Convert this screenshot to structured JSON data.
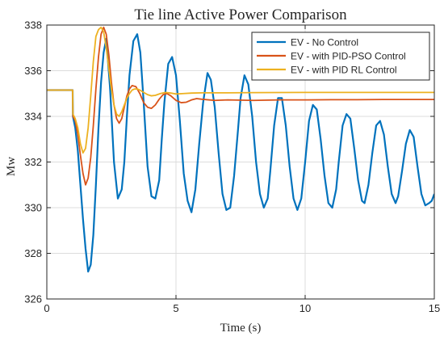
{
  "chart_data": {
    "type": "line",
    "title": "Tie line Active Power Comparison",
    "xlabel": "Time (s)",
    "ylabel": "Mw",
    "xlim": [
      0,
      15
    ],
    "ylim": [
      326,
      338
    ],
    "xticks": [
      0,
      5,
      10,
      15
    ],
    "yticks": [
      326,
      328,
      330,
      332,
      334,
      336,
      338
    ],
    "grid": true,
    "legend_position": "top-right",
    "series": [
      {
        "name": "EV - No Control",
        "color": "#0072BD",
        "x": [
          0,
          1.0,
          1.01,
          1.1,
          1.2,
          1.3,
          1.4,
          1.5,
          1.6,
          1.7,
          1.8,
          1.9,
          2.0,
          2.1,
          2.2,
          2.3,
          2.45,
          2.6,
          2.75,
          2.9,
          3.0,
          3.1,
          3.2,
          3.35,
          3.5,
          3.62,
          3.75,
          3.9,
          4.05,
          4.2,
          4.35,
          4.45,
          4.55,
          4.7,
          4.85,
          5.0,
          5.15,
          5.3,
          5.45,
          5.6,
          5.75,
          5.9,
          6.05,
          6.22,
          6.35,
          6.5,
          6.65,
          6.8,
          6.95,
          7.1,
          7.25,
          7.4,
          7.5,
          7.65,
          7.8,
          7.95,
          8.1,
          8.25,
          8.4,
          8.55,
          8.65,
          8.8,
          8.95,
          9.1,
          9.25,
          9.4,
          9.55,
          9.7,
          9.85,
          10.0,
          10.15,
          10.3,
          10.45,
          10.6,
          10.75,
          10.9,
          11.05,
          11.2,
          11.3,
          11.45,
          11.6,
          11.75,
          11.9,
          12.05,
          12.2,
          12.3,
          12.45,
          12.6,
          12.75,
          12.9,
          13.05,
          13.2,
          13.35,
          13.5,
          13.6,
          13.75,
          13.9,
          14.05,
          14.2,
          14.35,
          14.5,
          14.65,
          14.8,
          14.9,
          15.0
        ],
        "y": [
          335.15,
          335.15,
          334.0,
          333.5,
          332.5,
          331.0,
          329.5,
          328.2,
          327.2,
          327.5,
          328.8,
          331.0,
          333.5,
          335.5,
          336.8,
          337.4,
          335.2,
          332.0,
          330.4,
          330.8,
          332.0,
          334.0,
          335.8,
          337.3,
          337.6,
          336.8,
          334.6,
          331.8,
          330.5,
          330.4,
          331.2,
          333.0,
          334.6,
          336.3,
          336.6,
          335.8,
          333.8,
          331.5,
          330.3,
          329.8,
          330.8,
          332.8,
          334.6,
          335.9,
          335.6,
          334.4,
          332.4,
          330.6,
          329.9,
          330.0,
          331.4,
          333.4,
          334.8,
          335.8,
          335.4,
          334.0,
          332.0,
          330.6,
          330.0,
          330.4,
          331.6,
          333.6,
          334.8,
          334.8,
          333.6,
          331.8,
          330.4,
          329.9,
          330.4,
          332.0,
          333.8,
          334.5,
          334.3,
          333.0,
          331.4,
          330.2,
          330.0,
          330.8,
          332.0,
          333.6,
          334.1,
          333.9,
          332.6,
          331.2,
          330.3,
          330.2,
          331.0,
          332.4,
          333.6,
          333.8,
          333.2,
          331.8,
          330.6,
          330.2,
          330.5,
          331.6,
          332.8,
          333.4,
          333.1,
          331.8,
          330.6,
          330.1,
          330.2,
          330.3,
          330.6
        ]
      },
      {
        "name": "EV - with PID-PSO Control",
        "color": "#D95319",
        "x": [
          0,
          1.0,
          1.01,
          1.1,
          1.2,
          1.3,
          1.4,
          1.5,
          1.6,
          1.7,
          1.8,
          1.9,
          2.0,
          2.1,
          2.2,
          2.3,
          2.4,
          2.5,
          2.6,
          2.7,
          2.8,
          2.9,
          3.0,
          3.1,
          3.2,
          3.3,
          3.45,
          3.6,
          3.75,
          3.9,
          4.05,
          4.2,
          4.35,
          4.5,
          4.65,
          4.8,
          5.0,
          5.2,
          5.4,
          5.6,
          5.8,
          6.0,
          6.5,
          7.0,
          8.0,
          9.0,
          10.0,
          11.0,
          12.0,
          13.0,
          14.0,
          15.0
        ],
        "y": [
          335.15,
          335.15,
          334.0,
          333.8,
          333.2,
          332.3,
          331.5,
          331.0,
          331.3,
          332.2,
          333.6,
          335.2,
          336.6,
          337.6,
          337.9,
          337.6,
          336.7,
          335.5,
          334.5,
          333.9,
          333.7,
          333.9,
          334.4,
          334.9,
          335.2,
          335.35,
          335.3,
          335.0,
          334.6,
          334.4,
          334.35,
          334.5,
          334.75,
          334.95,
          335.0,
          334.9,
          334.7,
          334.6,
          334.62,
          334.72,
          334.78,
          334.75,
          334.7,
          334.72,
          334.7,
          334.72,
          334.72,
          334.73,
          334.73,
          334.74,
          334.74,
          334.74
        ]
      },
      {
        "name": "EV - with PID RL Control",
        "color": "#EDB120",
        "x": [
          0,
          1.0,
          1.01,
          1.1,
          1.2,
          1.3,
          1.4,
          1.5,
          1.6,
          1.7,
          1.8,
          1.9,
          2.0,
          2.1,
          2.2,
          2.3,
          2.4,
          2.5,
          2.6,
          2.7,
          2.8,
          2.9,
          3.0,
          3.1,
          3.2,
          3.3,
          3.4,
          3.5,
          3.6,
          3.75,
          3.9,
          4.05,
          4.2,
          4.4,
          4.6,
          4.8,
          5.0,
          5.3,
          5.6,
          6.0,
          7.0,
          8.0,
          10.0,
          12.0,
          15.0
        ],
        "y": [
          335.15,
          335.15,
          334.1,
          333.9,
          333.5,
          332.8,
          332.4,
          332.6,
          333.5,
          334.9,
          336.4,
          337.5,
          337.8,
          337.9,
          337.7,
          337.0,
          336.1,
          335.2,
          334.5,
          334.1,
          334.0,
          334.2,
          334.5,
          334.8,
          335.0,
          335.15,
          335.2,
          335.2,
          335.15,
          335.05,
          334.95,
          334.9,
          334.92,
          335.0,
          335.05,
          335.02,
          334.98,
          335.0,
          335.02,
          335.03,
          335.03,
          335.04,
          335.05,
          335.05,
          335.05
        ]
      }
    ]
  }
}
